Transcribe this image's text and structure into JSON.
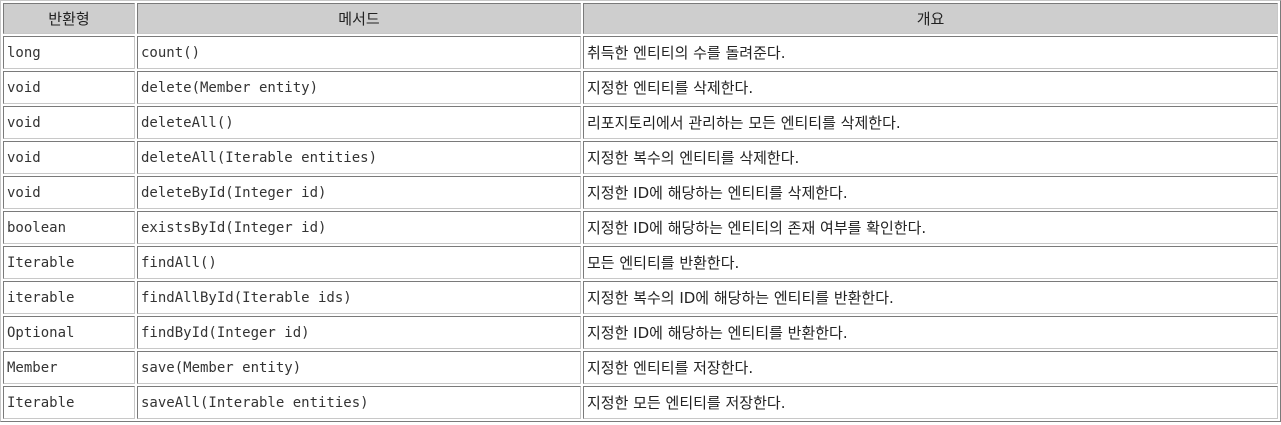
{
  "header": {
    "return_type": "반환형",
    "method": "메서드",
    "summary": "개요"
  },
  "rows": [
    {
      "return_type": "long",
      "method": "count()",
      "summary": "취득한 엔티티의 수를 돌려준다."
    },
    {
      "return_type": "void",
      "method": "delete(Member entity)",
      "summary": "지정한 엔티티를 삭제한다."
    },
    {
      "return_type": "void",
      "method": "deleteAll()",
      "summary": "리포지토리에서 관리하는 모든 엔티티를 삭제한다."
    },
    {
      "return_type": "void",
      "method": "deleteAll(Iterable entities)",
      "summary": "지정한 복수의 엔티티를 삭제한다."
    },
    {
      "return_type": "void",
      "method": "deleteById(Integer id)",
      "summary": "지정한 ID에 해당하는 엔티티를 삭제한다."
    },
    {
      "return_type": "boolean",
      "method": "existsById(Integer id)",
      "summary": "지정한 ID에 해당하는 엔티티의 존재 여부를 확인한다."
    },
    {
      "return_type": "Iterable",
      "method": "findAll()",
      "summary": "모든 엔티티를 반환한다."
    },
    {
      "return_type": "iterable",
      "method": "findAllById(Iterable ids)",
      "summary": "지정한 복수의 ID에 해당하는 엔티티를 반환한다."
    },
    {
      "return_type": "Optional",
      "method": "findById(Integer id)",
      "summary": "지정한 ID에 해당하는 엔티티를 반환한다."
    },
    {
      "return_type": "Member",
      "method": "save(Member entity)",
      "summary": "지정한 엔티티를 저장한다."
    },
    {
      "return_type": "Iterable",
      "method": "saveAll(Interable entities)",
      "summary": "지정한 모든 엔티티를 저장한다."
    }
  ]
}
